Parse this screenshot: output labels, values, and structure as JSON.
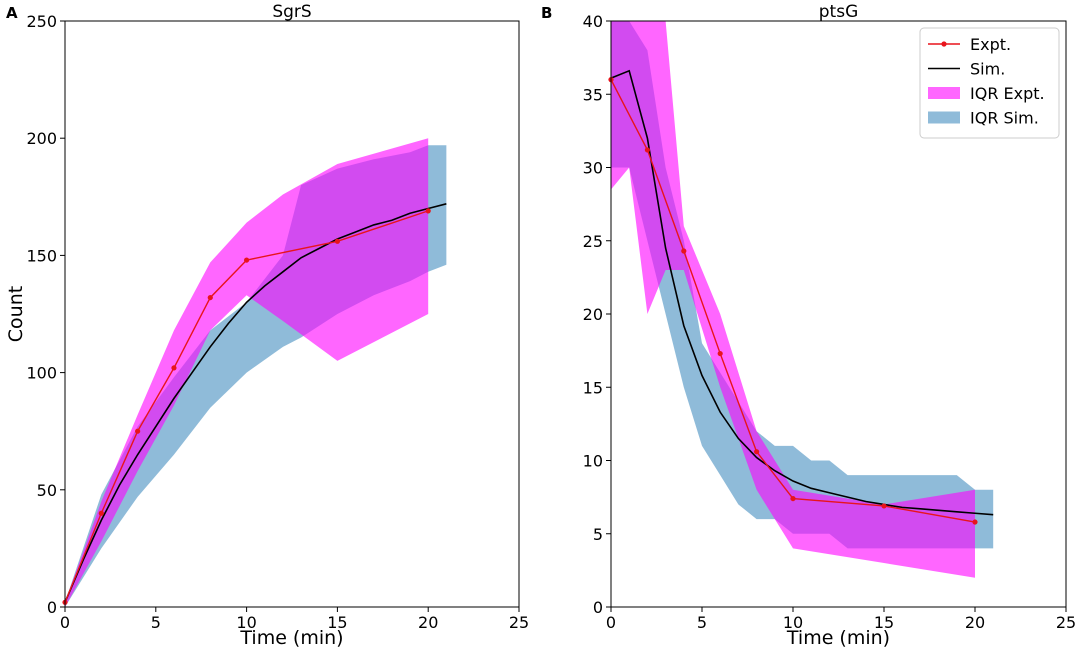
{
  "chart_data": [
    {
      "type": "line",
      "panel_label": "A",
      "title": "SgrS",
      "xlabel": "Time (min)",
      "ylabel": "Count",
      "xlim": [
        0,
        25
      ],
      "ylim": [
        0,
        250
      ],
      "xticks": [
        0,
        5,
        10,
        15,
        20,
        25
      ],
      "yticks": [
        0,
        50,
        100,
        150,
        200,
        250
      ],
      "colors": {
        "expt": "#e8141c",
        "sim": "#000000",
        "iqr_expt": "#ff00ff",
        "iqr_sim": "#1f77b4",
        "overlap": "#8b6ae0"
      },
      "series": [
        {
          "name": "Expt.",
          "kind": "line-marker",
          "x": [
            0,
            2,
            4,
            6,
            8,
            10,
            15,
            20
          ],
          "y": [
            2,
            40,
            75,
            102,
            132,
            148,
            156,
            169
          ]
        },
        {
          "name": "Sim.",
          "kind": "line",
          "x": [
            0,
            1,
            2,
            3,
            4,
            5,
            6,
            7,
            8,
            9,
            10,
            11,
            12,
            13,
            14,
            15,
            16,
            17,
            18,
            19,
            20,
            21
          ],
          "y": [
            2,
            20,
            37,
            52,
            65,
            77,
            89,
            100,
            111,
            121,
            130,
            137,
            143,
            149,
            153,
            157,
            160,
            163,
            165,
            168,
            170,
            172
          ]
        },
        {
          "name": "IQR Expt.",
          "kind": "band",
          "x": [
            0,
            2,
            4,
            6,
            8,
            10,
            12,
            15,
            20
          ],
          "lower": [
            0,
            28,
            58,
            86,
            118,
            133,
            122,
            105,
            125
          ],
          "upper": [
            2,
            45,
            82,
            118,
            147,
            164,
            176,
            189,
            200
          ]
        },
        {
          "name": "IQR Sim.",
          "kind": "band",
          "x": [
            0,
            2,
            4,
            6,
            8,
            10,
            12,
            13,
            15,
            17,
            19,
            20,
            21
          ],
          "lower": [
            0,
            25,
            47,
            65,
            85,
            100,
            111,
            115,
            125,
            133,
            139,
            143,
            146
          ],
          "upper": [
            2,
            48,
            77,
            98,
            118,
            130,
            150,
            180,
            187,
            191,
            194,
            197,
            197
          ]
        }
      ]
    },
    {
      "type": "line",
      "panel_label": "B",
      "title": "ptsG",
      "xlabel": "Time (min)",
      "ylabel": "",
      "xlim": [
        0,
        25
      ],
      "ylim": [
        0,
        40
      ],
      "xticks": [
        0,
        5,
        10,
        15,
        20,
        25
      ],
      "yticks": [
        0,
        5,
        10,
        15,
        20,
        25,
        30,
        35,
        40
      ],
      "legend_position": "top-right",
      "legend": [
        "Expt.",
        "Sim.",
        "IQR Expt.",
        "IQR Sim."
      ],
      "colors": {
        "expt": "#e8141c",
        "sim": "#000000",
        "iqr_expt": "#ff00ff",
        "iqr_sim": "#1f77b4",
        "overlap": "#8b6ae0"
      },
      "series": [
        {
          "name": "Expt.",
          "kind": "line-marker",
          "x": [
            0,
            2,
            4,
            6,
            8,
            10,
            15,
            20
          ],
          "y": [
            36.0,
            31.2,
            24.3,
            17.3,
            10.6,
            7.4,
            6.9,
            5.8
          ]
        },
        {
          "name": "Sim.",
          "kind": "line",
          "x": [
            0,
            1,
            2,
            3,
            4,
            5,
            6,
            7,
            8,
            9,
            10,
            11,
            12,
            13,
            14,
            15,
            16,
            17,
            18,
            19,
            20,
            21
          ],
          "y": [
            36.1,
            36.6,
            32.0,
            24.5,
            19.2,
            15.8,
            13.3,
            11.5,
            10.2,
            9.3,
            8.6,
            8.1,
            7.8,
            7.5,
            7.2,
            7.0,
            6.8,
            6.7,
            6.6,
            6.5,
            6.4,
            6.3
          ]
        },
        {
          "name": "IQR Expt.",
          "kind": "band",
          "x": [
            0,
            1,
            2,
            3,
            4,
            6,
            8,
            10,
            15,
            20
          ],
          "lower": [
            28.5,
            30.0,
            20.0,
            23.0,
            23.0,
            15.0,
            8.0,
            4.0,
            3.0,
            2.0
          ],
          "upper": [
            40,
            40,
            40,
            40,
            26.0,
            20.0,
            12.0,
            8.0,
            7.0,
            8.0
          ]
        },
        {
          "name": "IQR Sim.",
          "kind": "band",
          "x": [
            0,
            1,
            2,
            3,
            4,
            5,
            6,
            7,
            8,
            9,
            10,
            11,
            12,
            13,
            14,
            15,
            16,
            17,
            18,
            19,
            20,
            21
          ],
          "lower": [
            30.0,
            30.0,
            25.0,
            20.0,
            15.0,
            11.0,
            9.0,
            7.0,
            6.0,
            6.0,
            5.0,
            5.0,
            5.0,
            4.0,
            4.0,
            4.0,
            4.0,
            4.0,
            4.0,
            4.0,
            4.0,
            4.0
          ],
          "upper": [
            40,
            40,
            38.0,
            30.0,
            25.0,
            18.0,
            16.0,
            14.0,
            12.0,
            11.0,
            11.0,
            10.0,
            10.0,
            9.0,
            9.0,
            9.0,
            9.0,
            9.0,
            9.0,
            9.0,
            8.0,
            8.0
          ]
        }
      ]
    }
  ]
}
